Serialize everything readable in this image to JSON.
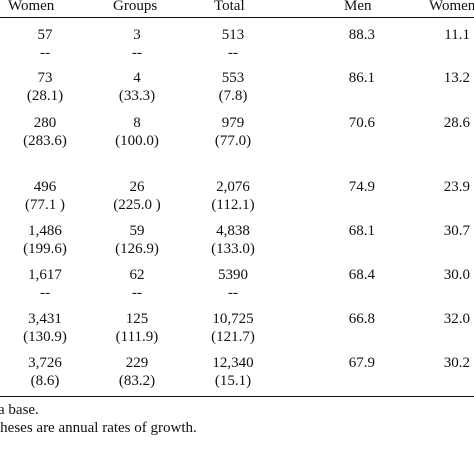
{
  "header": {
    "women": "Women",
    "groups": "Groups",
    "total": "Total",
    "men": "Men",
    "women_pct": "Women"
  },
  "rows": [
    {
      "women": "57",
      "women_growth": "--",
      "groups": "3",
      "groups_growth": "--",
      "total": "513",
      "total_growth": "--",
      "men": "88.3",
      "women_pct": "11.1"
    },
    {
      "women": "73",
      "women_growth": "(28.1)",
      "groups": "4",
      "groups_growth": "(33.3)",
      "total": "553",
      "total_growth": "(7.8)",
      "men": "86.1",
      "women_pct": "13.2"
    },
    {
      "women": "280",
      "women_growth": "(283.6)",
      "groups": "8",
      "groups_growth": "(100.0)",
      "total": "979",
      "total_growth": "(77.0)",
      "men": "70.6",
      "women_pct": "28.6"
    },
    {
      "women": "496",
      "women_growth": "(77.1 )",
      "groups": "26",
      "groups_growth": "(225.0 )",
      "total": "2,076",
      "total_growth": "(112.1)",
      "men": "74.9",
      "women_pct": "23.9"
    },
    {
      "women": "1,486",
      "women_growth": "(199.6)",
      "groups": "59",
      "groups_growth": "(126.9)",
      "total": "4,838",
      "total_growth": "(133.0)",
      "men": "68.1",
      "women_pct": "30.7"
    },
    {
      "women": "1,617",
      "women_growth": "--",
      "groups": "62",
      "groups_growth": "--",
      "total": "5390",
      "total_growth": "--",
      "men": "68.4",
      "women_pct": "30.0"
    },
    {
      "women": "3,431",
      "women_growth": "(130.9)",
      "groups": "125",
      "groups_growth": "(111.9)",
      "total": "10,725",
      "total_growth": "(121.7)",
      "men": "66.8",
      "women_pct": "32.0"
    },
    {
      "women": "3,726",
      "women_growth": "(8.6)",
      "groups": "229",
      "groups_growth": "(83.2)",
      "total": "12,340",
      "total_growth": "(15.1)",
      "men": "67.9",
      "women_pct": "30.2"
    }
  ],
  "notes": {
    "note1": "a base.",
    "note2": "theses are annual rates of growth."
  }
}
